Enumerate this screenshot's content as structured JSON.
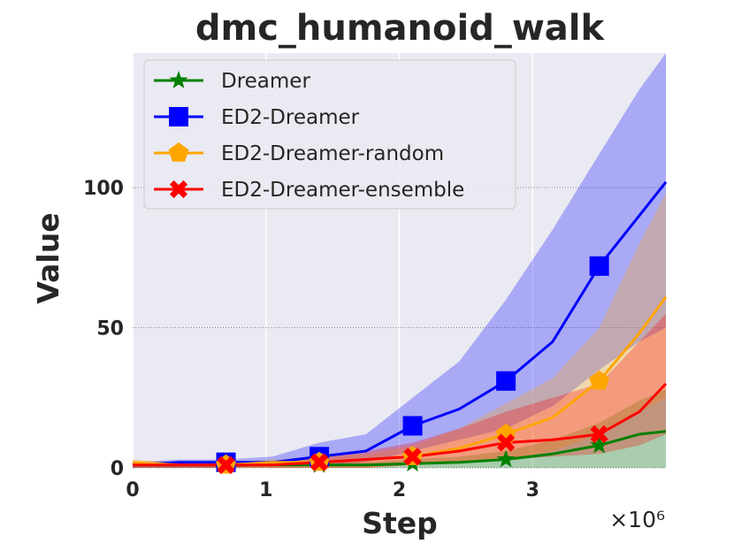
{
  "chart_data": {
    "type": "line",
    "title": "dmc_humanoid_walk",
    "xlabel": "Step",
    "ylabel": "Value",
    "x_offset_label": "×10⁶",
    "xlim": [
      0,
      4.0
    ],
    "ylim": [
      0,
      148
    ],
    "xticks": [
      0,
      1,
      2,
      3
    ],
    "xtick_labels": [
      "0",
      "1",
      "2",
      "3"
    ],
    "yticks": [
      0,
      50,
      100
    ],
    "ytick_labels": [
      "0",
      "50",
      "100"
    ],
    "grid": true,
    "legend_position": "top-left",
    "series": [
      {
        "name": "Dreamer",
        "color": "#008000",
        "marker": "star",
        "x": [
          0,
          0.35,
          0.7,
          1.05,
          1.4,
          1.75,
          2.1,
          2.45,
          2.8,
          3.15,
          3.5,
          3.8,
          4.0
        ],
        "y": [
          1,
          1,
          1,
          1,
          1,
          1,
          1.5,
          2,
          3,
          5,
          8,
          12,
          13
        ],
        "lower": [
          0,
          0,
          0,
          0,
          0,
          0,
          0,
          0,
          0,
          0,
          0,
          0,
          0
        ],
        "upper": [
          2,
          2,
          2,
          2,
          2,
          2,
          3,
          4,
          6,
          10,
          16,
          24,
          28
        ]
      },
      {
        "name": "ED2-Dreamer",
        "color": "#0000ff",
        "marker": "square",
        "x": [
          0,
          0.35,
          0.7,
          1.05,
          1.4,
          1.75,
          2.1,
          2.45,
          2.8,
          3.15,
          3.5,
          3.8,
          4.0
        ],
        "y": [
          1,
          2,
          2,
          2,
          4,
          6,
          15,
          21,
          31,
          45,
          72,
          90,
          102
        ],
        "lower": [
          0,
          0,
          0,
          1,
          1,
          2,
          6,
          10,
          14,
          22,
          35,
          45,
          50
        ],
        "upper": [
          2,
          3,
          3,
          4,
          9,
          12,
          25,
          38,
          60,
          85,
          112,
          135,
          148
        ]
      },
      {
        "name": "ED2-Dreamer-random",
        "color": "#ffa500",
        "marker": "pentagon",
        "x": [
          0,
          0.35,
          0.7,
          1.05,
          1.4,
          1.75,
          2.1,
          2.45,
          2.8,
          3.15,
          3.5,
          3.8,
          4.0
        ],
        "y": [
          2,
          1,
          1,
          2,
          2,
          3,
          4,
          7,
          12,
          18,
          31,
          48,
          61
        ],
        "lower": [
          0,
          0,
          0,
          0,
          0,
          0,
          1,
          2,
          3,
          6,
          12,
          20,
          25
        ],
        "upper": [
          3,
          2,
          2,
          3,
          4,
          5,
          8,
          14,
          23,
          32,
          50,
          80,
          98
        ]
      },
      {
        "name": "ED2-Dreamer-ensemble",
        "color": "#ff0000",
        "marker": "x",
        "x": [
          0,
          0.35,
          0.7,
          1.05,
          1.4,
          1.75,
          2.1,
          2.45,
          2.8,
          3.15,
          3.5,
          3.8,
          4.0
        ],
        "y": [
          1,
          1,
          1,
          1,
          2,
          3,
          4,
          6,
          9,
          10,
          12,
          20,
          30
        ],
        "lower": [
          0,
          0,
          0,
          0,
          0,
          0,
          1,
          2,
          3,
          4,
          5,
          8,
          12
        ],
        "upper": [
          2,
          2,
          2,
          2,
          4,
          6,
          9,
          14,
          20,
          25,
          30,
          45,
          55
        ]
      }
    ]
  }
}
